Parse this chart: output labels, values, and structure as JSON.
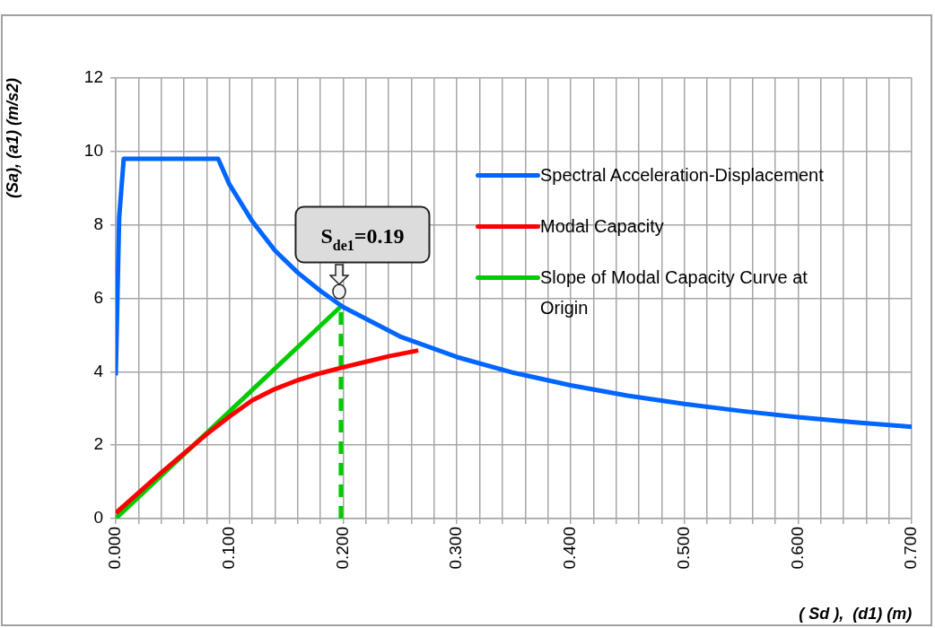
{
  "chart_data": {
    "type": "line",
    "xlabel": "( Sd ),  (d1) (m)",
    "ylabel": "(Sa), (a1) (m/s2)",
    "xlim": [
      0,
      0.7
    ],
    "xticks": [
      {
        "value": 0,
        "label": "0.000"
      },
      {
        "value": 0.02,
        "label": null
      },
      {
        "value": 0.04,
        "label": null
      },
      {
        "value": 0.06,
        "label": null
      },
      {
        "value": 0.08,
        "label": null
      },
      {
        "value": 0.1,
        "label": "0.100"
      },
      {
        "value": 0.12,
        "label": null
      },
      {
        "value": 0.14,
        "label": null
      },
      {
        "value": 0.16,
        "label": null
      },
      {
        "value": 0.18,
        "label": null
      },
      {
        "value": 0.2,
        "label": "0.200"
      },
      {
        "value": 0.22,
        "label": null
      },
      {
        "value": 0.24,
        "label": null
      },
      {
        "value": 0.26,
        "label": null
      },
      {
        "value": 0.28,
        "label": null
      },
      {
        "value": 0.3,
        "label": "0.300"
      },
      {
        "value": 0.32,
        "label": null
      },
      {
        "value": 0.34,
        "label": null
      },
      {
        "value": 0.36,
        "label": null
      },
      {
        "value": 0.38,
        "label": null
      },
      {
        "value": 0.4,
        "label": "0.400"
      },
      {
        "value": 0.42,
        "label": null
      },
      {
        "value": 0.44,
        "label": null
      },
      {
        "value": 0.46,
        "label": null
      },
      {
        "value": 0.48,
        "label": null
      },
      {
        "value": 0.5,
        "label": "0.500"
      },
      {
        "value": 0.52,
        "label": null
      },
      {
        "value": 0.54,
        "label": null
      },
      {
        "value": 0.56,
        "label": null
      },
      {
        "value": 0.58,
        "label": null
      },
      {
        "value": 0.6,
        "label": "0.600"
      },
      {
        "value": 0.62,
        "label": null
      },
      {
        "value": 0.64,
        "label": null
      },
      {
        "value": 0.66,
        "label": null
      },
      {
        "value": 0.68,
        "label": null
      },
      {
        "value": 0.7,
        "label": "0.700"
      }
    ],
    "ylim": [
      0,
      12
    ],
    "yticks": [
      0,
      2,
      4,
      6,
      8,
      10,
      12
    ],
    "grid": true,
    "legend": "top right",
    "marker": "none",
    "series": [
      {
        "name": "Spectral Acceleration-Displacement",
        "color": "#0066ff",
        "line_style": "solid",
        "x": [
          0,
          0.003,
          0.007,
          0.09,
          0.1,
          0.12,
          0.14,
          0.16,
          0.18,
          0.2,
          0.25,
          0.3,
          0.35,
          0.4,
          0.45,
          0.5,
          0.55,
          0.6,
          0.65,
          0.7
        ],
        "values": [
          3.9,
          8.2,
          9.8,
          9.8,
          9.1,
          8.1,
          7.3,
          6.7,
          6.2,
          5.76,
          4.96,
          4.4,
          3.97,
          3.63,
          3.35,
          3.12,
          2.93,
          2.76,
          2.62,
          2.5
        ]
      },
      {
        "name": "Modal Capacity",
        "color": "#ff0000",
        "line_style": "solid",
        "x": [
          0,
          0.04,
          0.08,
          0.1,
          0.12,
          0.14,
          0.16,
          0.18,
          0.2,
          0.22,
          0.24,
          0.266
        ],
        "values": [
          0.15,
          1.25,
          2.3,
          2.78,
          3.22,
          3.53,
          3.77,
          3.96,
          4.12,
          4.27,
          4.42,
          4.58
        ]
      },
      {
        "name": "Slope of Modal Capacity Curve at Origin",
        "color": "#00cc00",
        "line_style": "solid",
        "x": [
          0,
          0.198
        ],
        "values": [
          0,
          5.78
        ]
      },
      {
        "color": "#00cc00",
        "line_style": "dashed",
        "x": [
          0.198,
          0.198
        ],
        "values": [
          0,
          5.78
        ]
      }
    ],
    "annotations": [
      {
        "text": "S$_{de1}$=0.19",
        "x": 0.198,
        "y": 5.78
      }
    ]
  }
}
